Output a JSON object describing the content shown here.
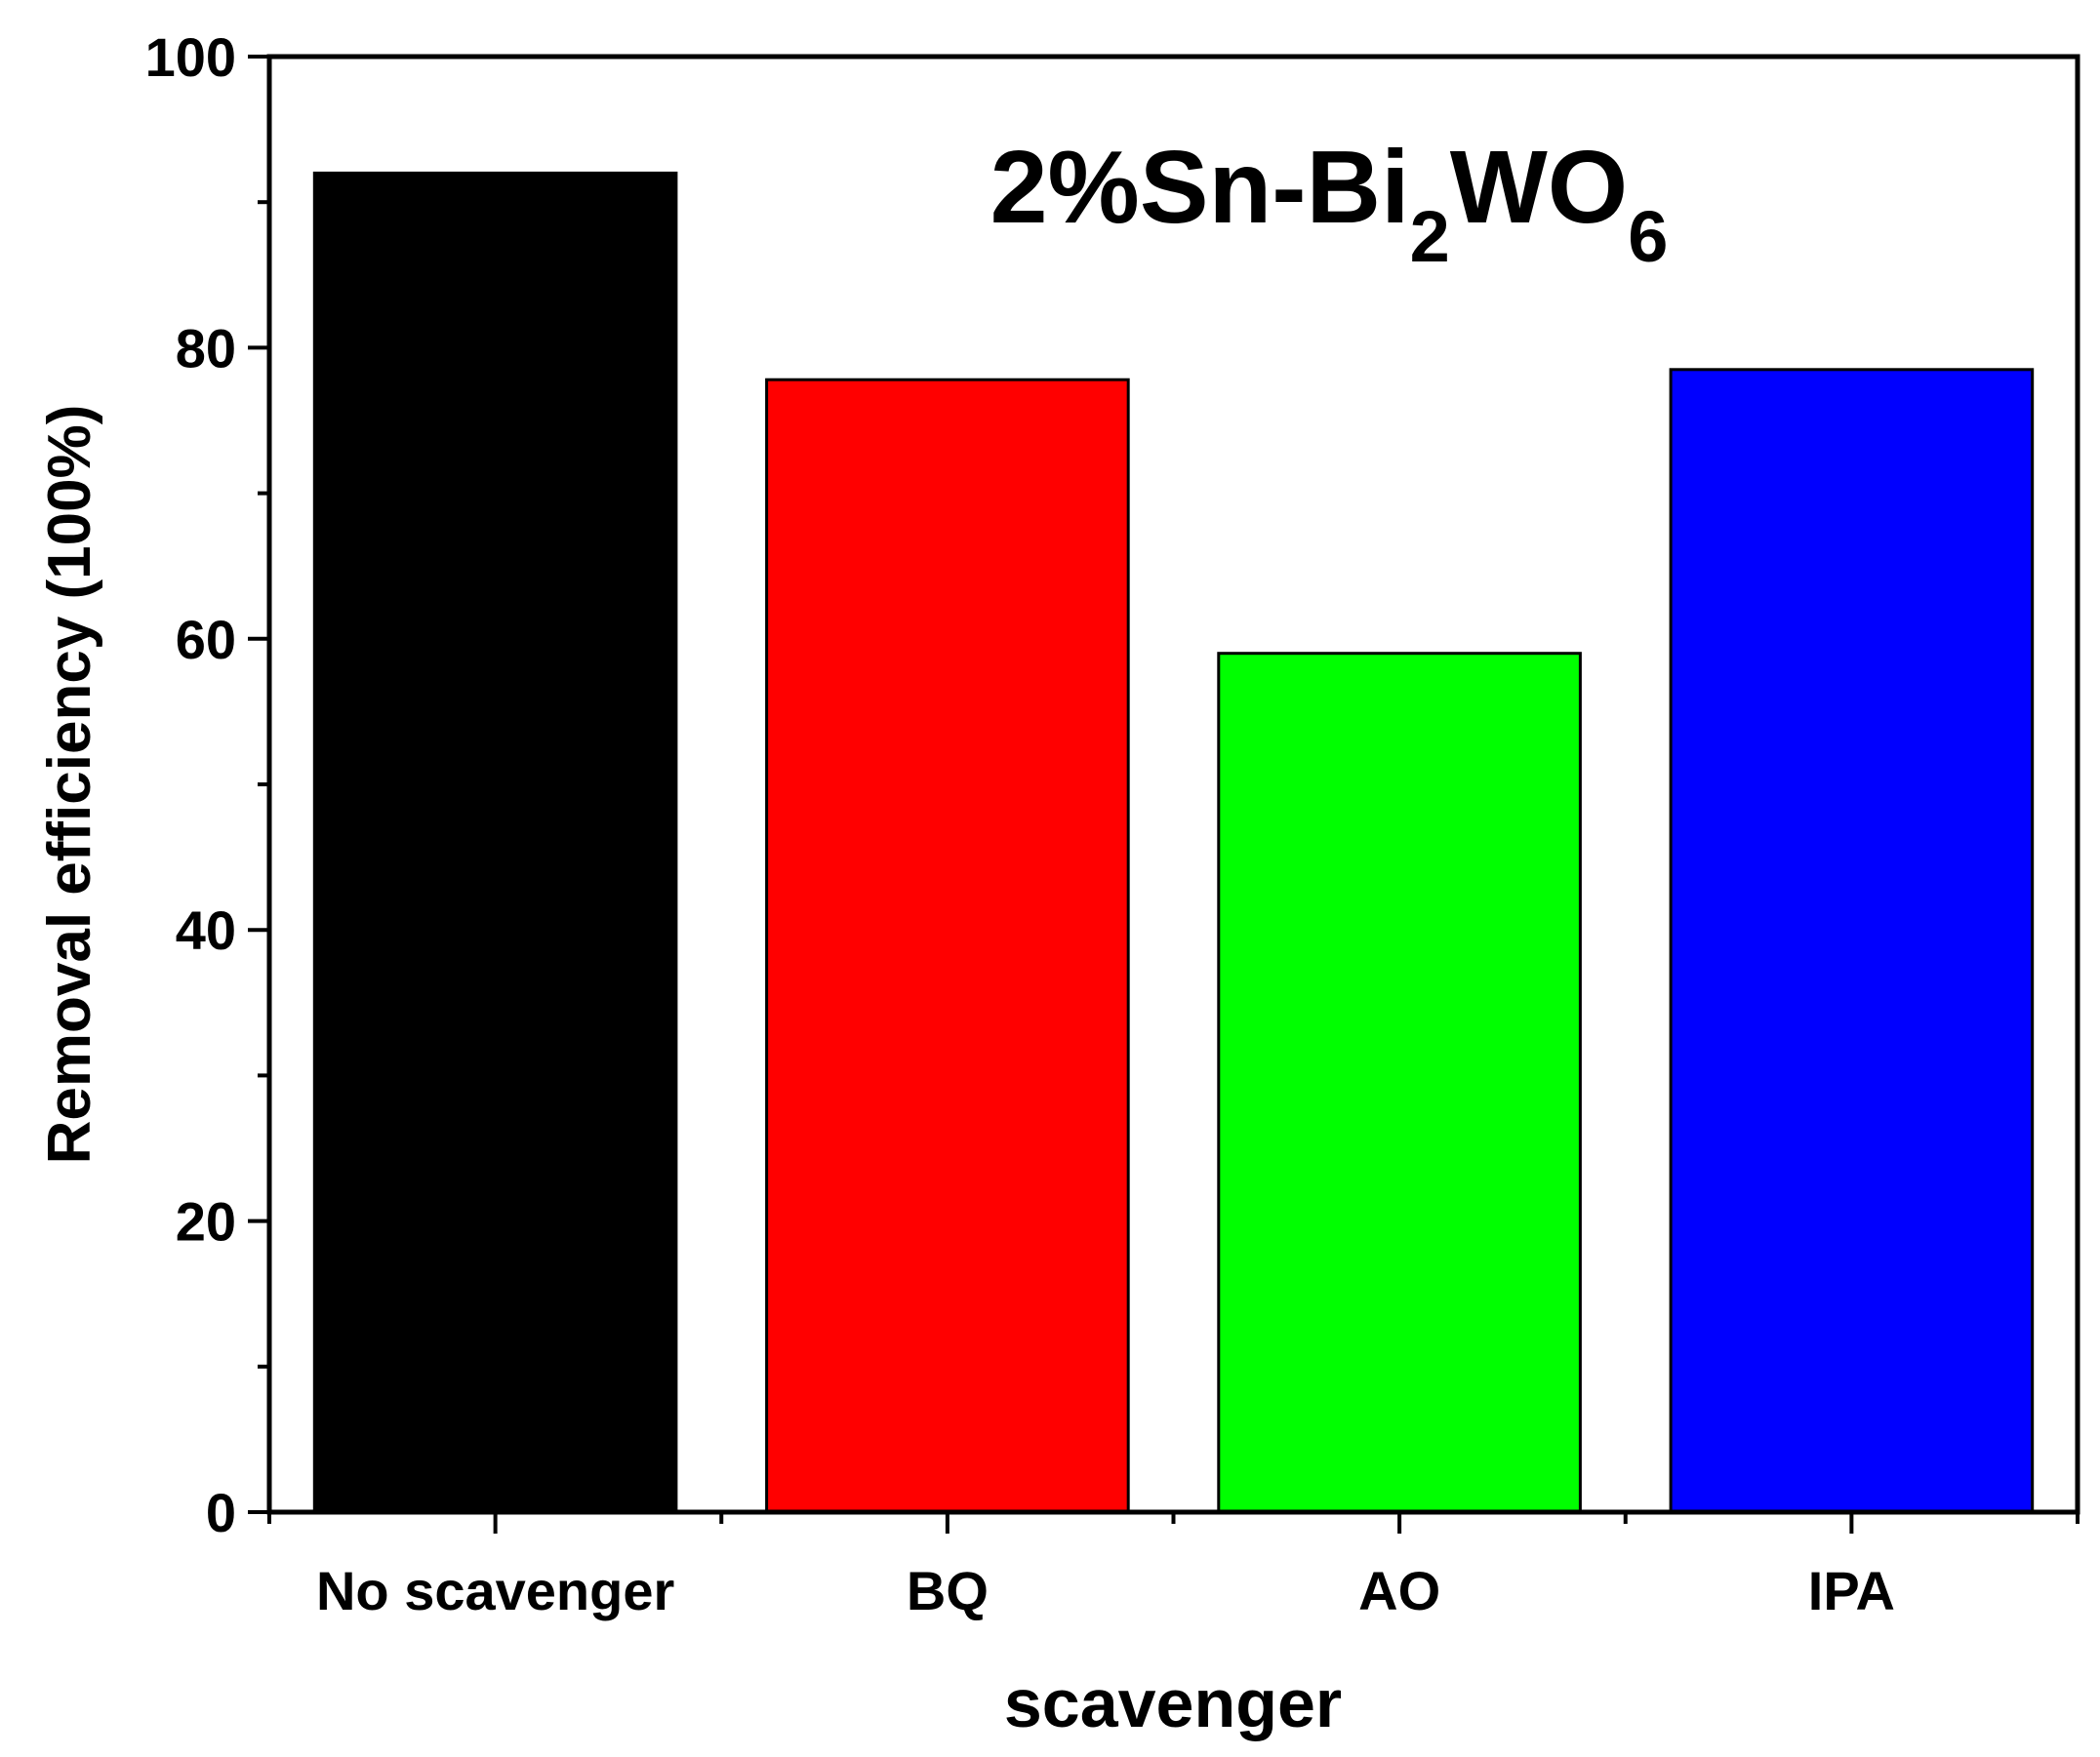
{
  "chart_data": {
    "type": "bar",
    "title": {
      "prefix": "2%Sn-Bi",
      "sub1": "2",
      "mid": "WO",
      "sub2": "6"
    },
    "xlabel": "scavenger",
    "ylabel": "Removal efficiency (100%)",
    "categories": [
      "No scavenger",
      "BQ",
      "AO",
      "IPA"
    ],
    "values": [
      92,
      77.8,
      59,
      78.5
    ],
    "colors": [
      "#000000",
      "#ff0000",
      "#00ff00",
      "#0000ff"
    ],
    "ylim": [
      0,
      100
    ],
    "yticks": [
      0,
      20,
      40,
      60,
      80,
      100
    ],
    "ytick_labels": [
      "0",
      "20",
      "40",
      "60",
      "80",
      "100"
    ],
    "grid": false,
    "legend": "none"
  }
}
